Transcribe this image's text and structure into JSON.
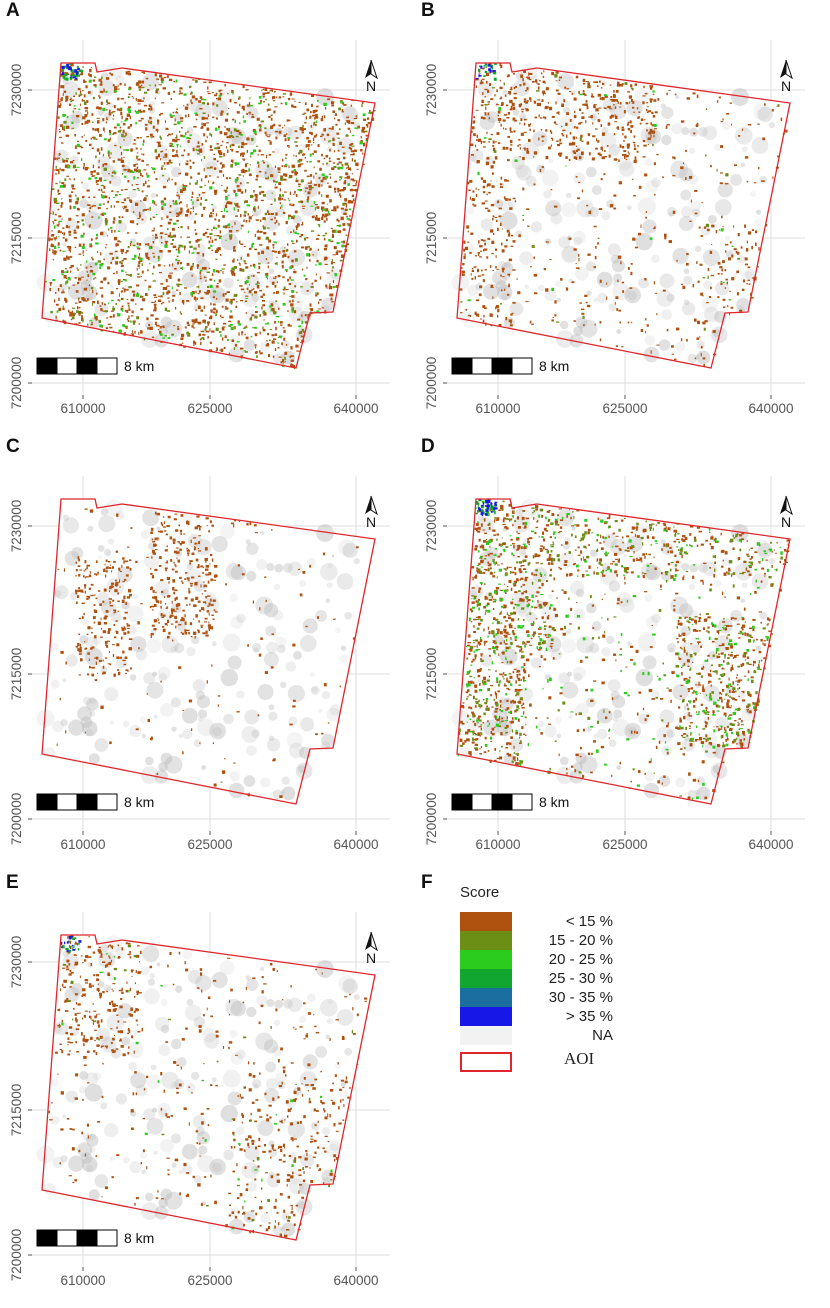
{
  "panels": [
    {
      "letter": "A",
      "scale_label": "8 km",
      "patches": {
        "brown": 0.62,
        "olive": 0.1,
        "green": 0.09,
        "teal": 0.01,
        "blue": 0.005
      },
      "zones": "all"
    },
    {
      "letter": "B",
      "scale_label": "8 km",
      "patches": {
        "brown": 0.28,
        "olive": 0.01,
        "green": 0.005,
        "teal": 0.004,
        "blue": 0.003
      },
      "zones": "north-west-streams"
    },
    {
      "letter": "C",
      "scale_label": "8 km",
      "patches": {
        "brown": 0.18,
        "olive": 0,
        "green": 0,
        "teal": 0,
        "blue": 0
      },
      "zones": "north-blob"
    },
    {
      "letter": "D",
      "scale_label": "8 km",
      "patches": {
        "brown": 0.38,
        "olive": 0.12,
        "green": 0.1,
        "teal": 0.01,
        "blue": 0.008
      },
      "zones": "west-heavy"
    },
    {
      "letter": "E",
      "scale_label": "8 km",
      "patches": {
        "brown": 0.2,
        "olive": 0.01,
        "green": 0.008,
        "teal": 0.004,
        "blue": 0.003
      },
      "zones": "sparse"
    }
  ],
  "axes": {
    "y_ticks": [
      "7230000",
      "7215000",
      "7200000"
    ],
    "x_ticks": [
      "610000",
      "625000",
      "640000"
    ]
  },
  "legend": {
    "letter": "F",
    "title": "Score",
    "items": [
      {
        "label": "< 15 %",
        "color": "#b0520f"
      },
      {
        "label": "15 - 20 %",
        "color": "#6b8e14"
      },
      {
        "label": "20 - 25 %",
        "color": "#2ccc1e"
      },
      {
        "label": "25 - 30 %",
        "color": "#10a630"
      },
      {
        "label": "30 - 35 %",
        "color": "#1a6ea0"
      },
      {
        "label": "> 35 %",
        "color": "#1717e8"
      },
      {
        "label": "NA",
        "color": "#f2f2f2"
      }
    ],
    "aoi_label": "AOI",
    "aoi_color": "#e0262c"
  },
  "colors": {
    "aoi": "#e0262c",
    "grid": "#dcdcdc",
    "hillshade": "#bdbdbd"
  },
  "north_arrow_icon": "north-arrow-icon",
  "scale_bar_icon": "scale-bar-icon"
}
